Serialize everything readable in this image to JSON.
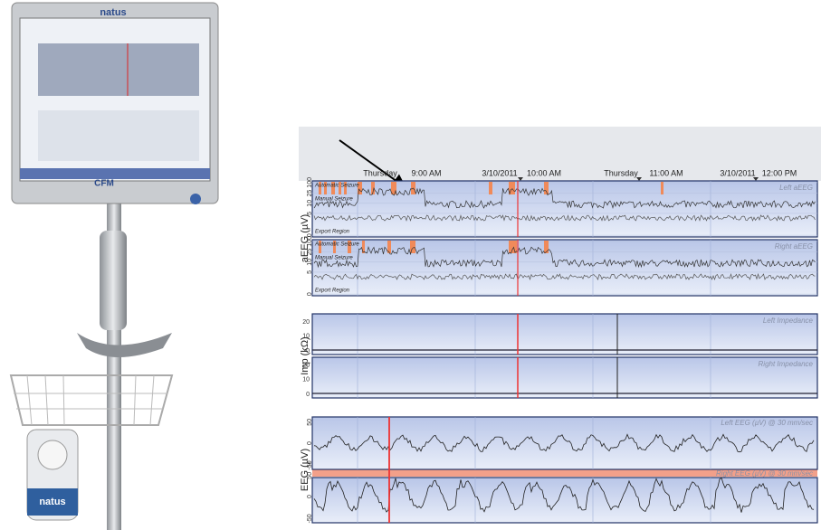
{
  "monitor": {
    "brand": "natus",
    "logo": "CFM"
  },
  "device": {
    "brand": "natus"
  },
  "timeline": [
    "Thursday",
    "9:00 AM",
    "3/10/2011",
    "10:00 AM",
    "Thursday",
    "11:00 AM",
    "3/10/2011",
    "12:00 PM"
  ],
  "aeeg": {
    "axis_label": "aEEG (µV)",
    "ticks": [
      100,
      25,
      10,
      5,
      0
    ],
    "panels": [
      {
        "title": "Left aEEG",
        "rows": [
          "Automatic Seizure",
          "Manual Seizure",
          "Export Region"
        ]
      },
      {
        "title": "Right aEEG",
        "rows": [
          "Automatic Seizure",
          "Manual Seizure",
          "Export Region"
        ]
      }
    ]
  },
  "impedance": {
    "axis_label": "Imp (kΩ)",
    "ticks": [
      20,
      10,
      0
    ],
    "panels": [
      {
        "title": "Left Impedance"
      },
      {
        "title": "Right Impedance"
      }
    ]
  },
  "eeg": {
    "axis_label": "EEG (µV)",
    "ticks": [
      50,
      0,
      -50
    ],
    "panels": [
      {
        "title": "Left EEG (µV) @ 30 mm/sec"
      },
      {
        "title": "Right EEG (µV) @ 30 mm/sec"
      }
    ]
  }
}
